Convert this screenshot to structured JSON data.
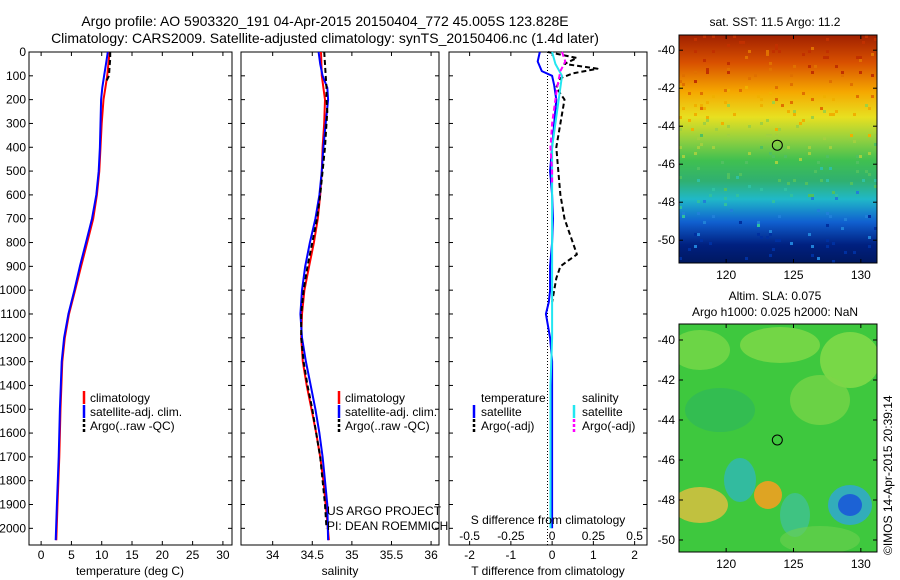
{
  "header": {
    "line1": "Argo profile: AO 5903320_191 04-Apr-2015 20150404_772 45.005S 123.828E",
    "line2": "Climatology: CARS2009. Satellite-adjusted climatology: synTS_20150406.nc (1.4d later)"
  },
  "colors": {
    "climatology": "#ff0000",
    "satellite": "#0000ff",
    "argo": "#000000",
    "salinity_satellite": "#22e6f0",
    "salinity_argo": "#ff00ff"
  },
  "depth_ticks": [
    0,
    100,
    200,
    300,
    400,
    500,
    600,
    700,
    800,
    900,
    1000,
    1100,
    1200,
    1300,
    1400,
    1500,
    1600,
    1700,
    1800,
    1900,
    2000
  ],
  "chart_data": [
    {
      "type": "line",
      "xlabel": "temperature (deg C)",
      "xlim": [
        -2,
        31.5
      ],
      "ylim": [
        2070,
        0
      ],
      "xticks": [
        "0",
        "5",
        "10",
        "15",
        "20",
        "25",
        "30"
      ],
      "xtick_values": [
        0,
        5,
        10,
        15,
        20,
        25,
        30
      ],
      "legend": [
        "climatology",
        "satellite-adj. clim.",
        "Argo(..raw -QC)"
      ],
      "series": [
        {
          "name": "climatology",
          "color": "#ff0000",
          "depth": [
            0,
            50,
            100,
            150,
            200,
            300,
            400,
            500,
            600,
            700,
            800,
            900,
            1000,
            1100,
            1200,
            1300,
            1500,
            1700,
            1900,
            2050
          ],
          "values": [
            11.3,
            11.1,
            10.9,
            10.6,
            10.3,
            10.0,
            9.8,
            9.6,
            9.2,
            8.6,
            7.6,
            6.6,
            5.6,
            4.6,
            3.9,
            3.5,
            3.2,
            3.0,
            2.7,
            2.5
          ]
        },
        {
          "name": "satellite-adj. clim.",
          "color": "#0000ff",
          "depth": [
            0,
            50,
            100,
            150,
            200,
            300,
            400,
            500,
            600,
            700,
            800,
            900,
            1000,
            1100,
            1200,
            1300,
            1500,
            1700,
            1900,
            2050
          ],
          "values": [
            11.0,
            10.7,
            10.4,
            10.1,
            9.9,
            9.8,
            9.7,
            9.5,
            9.1,
            8.4,
            7.4,
            6.4,
            5.5,
            4.5,
            3.8,
            3.4,
            3.1,
            2.9,
            2.6,
            2.4
          ]
        },
        {
          "name": "Argo(..raw -QC)",
          "color": "#000000",
          "depth": [
            0,
            30,
            60,
            100,
            120
          ],
          "values": [
            11.4,
            11.4,
            11.3,
            11.2,
            10.8
          ]
        }
      ]
    },
    {
      "type": "line",
      "xlabel": "salinity",
      "xlim": [
        33.6,
        36.1
      ],
      "ylim": [
        2070,
        0
      ],
      "xticks": [
        "34",
        "34.5",
        "35",
        "35.5",
        "36"
      ],
      "xtick_values": [
        34,
        34.5,
        35,
        35.5,
        36
      ],
      "legend": [
        "climatology",
        "satellite-adj. clim.",
        "Argo(..raw -QC)"
      ],
      "annotation": [
        "US ARGO PROJECT",
        "PI: DEAN ROEMMICH"
      ],
      "series": [
        {
          "name": "climatology",
          "color": "#ff0000",
          "depth": [
            0,
            100,
            150,
            200,
            300,
            400,
            500,
            600,
            700,
            800,
            900,
            1000,
            1100,
            1200,
            1300,
            1400,
            1500,
            1600,
            1700,
            1800,
            1900,
            2050
          ],
          "values": [
            34.61,
            34.62,
            34.64,
            34.66,
            34.65,
            34.63,
            34.62,
            34.6,
            34.57,
            34.52,
            34.46,
            34.4,
            34.37,
            34.36,
            34.38,
            34.43,
            34.49,
            34.55,
            34.6,
            34.64,
            34.67,
            34.71
          ]
        },
        {
          "name": "satellite-adj. clim.",
          "color": "#0000ff",
          "depth": [
            0,
            50,
            100,
            150,
            200,
            300,
            400,
            500,
            600,
            700,
            800,
            900,
            1000,
            1100,
            1200,
            1300,
            1400,
            1500,
            1600,
            1700,
            1800,
            1900,
            2050
          ],
          "values": [
            34.58,
            34.6,
            34.63,
            34.69,
            34.7,
            34.67,
            34.64,
            34.62,
            34.59,
            34.54,
            34.47,
            34.41,
            34.37,
            34.35,
            34.37,
            34.42,
            34.48,
            34.54,
            34.59,
            34.63,
            34.66,
            34.69,
            34.7
          ]
        },
        {
          "name": "Argo(..raw -QC)",
          "color": "#000000",
          "depth": [
            0,
            50,
            100,
            150,
            200,
            250,
            300,
            400,
            500,
            600,
            700,
            800,
            900,
            1000,
            1100,
            1200,
            1300,
            1400,
            1500,
            1600,
            1700,
            1800,
            1900,
            2000
          ],
          "values": [
            34.65,
            34.66,
            34.67,
            34.68,
            34.68,
            34.69,
            34.68,
            34.66,
            34.63,
            34.6,
            34.56,
            34.5,
            34.44,
            34.39,
            34.36,
            34.36,
            34.39,
            34.44,
            34.5,
            34.55,
            34.6,
            34.63,
            34.66,
            34.68
          ]
        }
      ]
    },
    {
      "type": "line",
      "xlabel": "T difference from climatology",
      "top_label": "S difference from climatology",
      "xlim": [
        -2.5,
        2.3
      ],
      "ylim": [
        2070,
        0
      ],
      "xticks": [
        "-2",
        "-1",
        "0",
        "1",
        "2"
      ],
      "xtick_values": [
        -2,
        -1,
        0,
        1,
        2
      ],
      "s_ticks": [
        "-0.5",
        "-0.25",
        "0",
        "0.25",
        "0.5"
      ],
      "legend_left_title": "temperature",
      "legend_right_title": "salinity",
      "legend_left": [
        "satellite",
        "Argo(-adj)"
      ],
      "legend_right": [
        "satellite",
        "Argo(-adj)"
      ],
      "series": [
        {
          "name": "temperature satellite",
          "color": "#0000ff",
          "depth": [
            0,
            40,
            80,
            100,
            140,
            200,
            300,
            400,
            500,
            600,
            700,
            800,
            900,
            1000,
            1050,
            1100,
            1150,
            1200,
            1300,
            1500,
            1700,
            1900,
            2000
          ],
          "values": [
            -0.3,
            -0.35,
            -0.25,
            0.0,
            0.05,
            0.1,
            0.05,
            0.0,
            -0.05,
            0.0,
            0.02,
            0.0,
            -0.05,
            -0.05,
            -0.08,
            -0.15,
            -0.1,
            -0.05,
            0.0,
            0.0,
            0.0,
            0.0,
            0.0
          ]
        },
        {
          "name": "temperature Argo(-adj)",
          "color": "#000000",
          "depth": [
            0,
            25,
            50,
            70,
            90,
            110,
            150,
            200,
            300,
            400,
            500,
            600,
            700,
            750,
            800,
            850,
            900,
            950,
            1000,
            1050
          ],
          "values": [
            -0.1,
            0.6,
            0.3,
            1.1,
            0.5,
            0.2,
            0.1,
            0.3,
            0.2,
            0.1,
            0.15,
            0.2,
            0.3,
            0.4,
            0.5,
            0.6,
            0.2,
            0.1,
            0.05,
            0.0
          ]
        },
        {
          "name": "salinity satellite",
          "color": "#22e6f0",
          "depth": [
            0,
            50,
            100,
            200,
            300,
            400,
            500,
            600,
            700,
            800,
            900,
            1000,
            1200,
            1400,
            1600,
            1800,
            2000
          ],
          "values": [
            0.0,
            0.02,
            0.06,
            0.04,
            0.02,
            0.0,
            0.0,
            0.0,
            0.0,
            0.0,
            0.0,
            0.0,
            0.0,
            -0.01,
            -0.01,
            -0.01,
            -0.01
          ]
        },
        {
          "name": "salinity Argo(-adj)",
          "color": "#ff00ff",
          "depth": [
            0,
            40,
            80,
            150,
            200,
            300,
            400,
            500,
            550
          ],
          "values": [
            0.06,
            0.08,
            0.05,
            0.03,
            0.02,
            0.0,
            -0.01,
            0.0,
            0.0
          ]
        }
      ]
    }
  ],
  "sst_map": {
    "title": "sat. SST: 11.5 Argo: 11.2",
    "yticks": [
      "-40",
      "-42",
      "-44",
      "-46",
      "-48",
      "-50"
    ],
    "ytick_values": [
      -40,
      -42,
      -44,
      -46,
      -48,
      -50
    ],
    "xticks": [
      "120",
      "125",
      "130"
    ],
    "xtick_values": [
      120,
      125,
      130
    ],
    "lat_range": [
      -39.2,
      -51.2
    ],
    "lon_range": [
      116.5,
      131.2
    ],
    "marker": {
      "lon": 123.8,
      "lat": -45.0
    }
  },
  "sla_map": {
    "title_line1": "Altim. SLA: 0.075",
    "title_line2": "Argo h1000: 0.025 h2000: NaN",
    "yticks": [
      "-40",
      "-42",
      "-44",
      "-46",
      "-48",
      "-50"
    ],
    "ytick_values": [
      -40,
      -42,
      -44,
      -46,
      -48,
      -50
    ],
    "xticks": [
      "120",
      "125",
      "130"
    ],
    "xtick_values": [
      120,
      125,
      130
    ],
    "lat_range": [
      -39.2,
      -50.6
    ],
    "lon_range": [
      116.5,
      131.2
    ],
    "marker": {
      "lon": 123.8,
      "lat": -45.0
    }
  },
  "footer": {
    "stamp": "©IMOS 14-Apr-2015 20:39:14"
  }
}
